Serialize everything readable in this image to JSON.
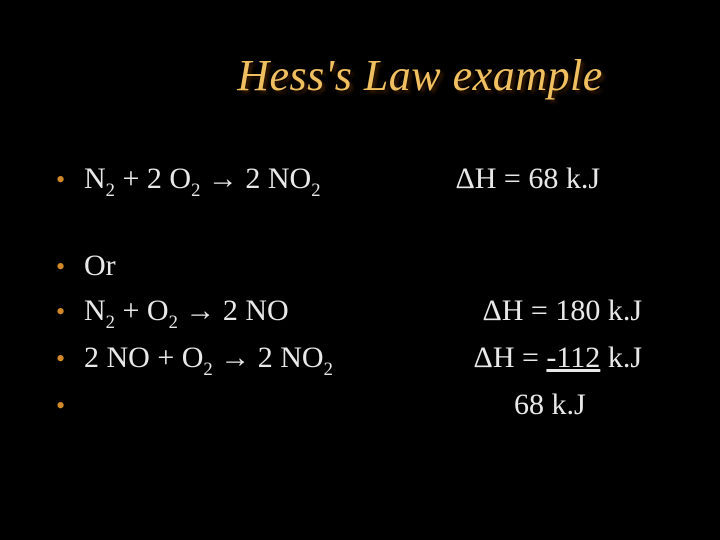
{
  "colors": {
    "background": "#000000",
    "title": "#f0c060",
    "bullet": "#d08828",
    "text": "#e8e8e8"
  },
  "typography": {
    "title_fontsize_pt": 44,
    "title_style": "italic",
    "body_fontsize_pt": 30,
    "font_family": "Times New Roman"
  },
  "title": "Hess's Law example",
  "rows": {
    "r1": {
      "lhs_prefix": "N",
      "lhs_sub1": "2",
      "lhs_mid1": "  + 2 O",
      "lhs_sub2": "2",
      "lhs_mid2": " → 2 NO",
      "lhs_sub3": "2",
      "rhs": "ΔH = 68 k.J"
    },
    "r2": {
      "lhs": "Or"
    },
    "r3": {
      "lhs_prefix": "N",
      "lhs_sub1": "2",
      "lhs_mid1": "  + O",
      "lhs_sub2": "2",
      "lhs_mid2": " → 2 NO",
      "rhs": "ΔH = 180 k.J"
    },
    "r4": {
      "lhs_prefix": "2 NO  + O",
      "lhs_sub1": "2",
      "lhs_mid1": " → 2 NO",
      "lhs_sub2": "2",
      "rhs_pre": "ΔH = ",
      "rhs_ul": "-112",
      "rhs_post": " k.J"
    },
    "r5": {
      "rhs": "68 k.J"
    }
  }
}
